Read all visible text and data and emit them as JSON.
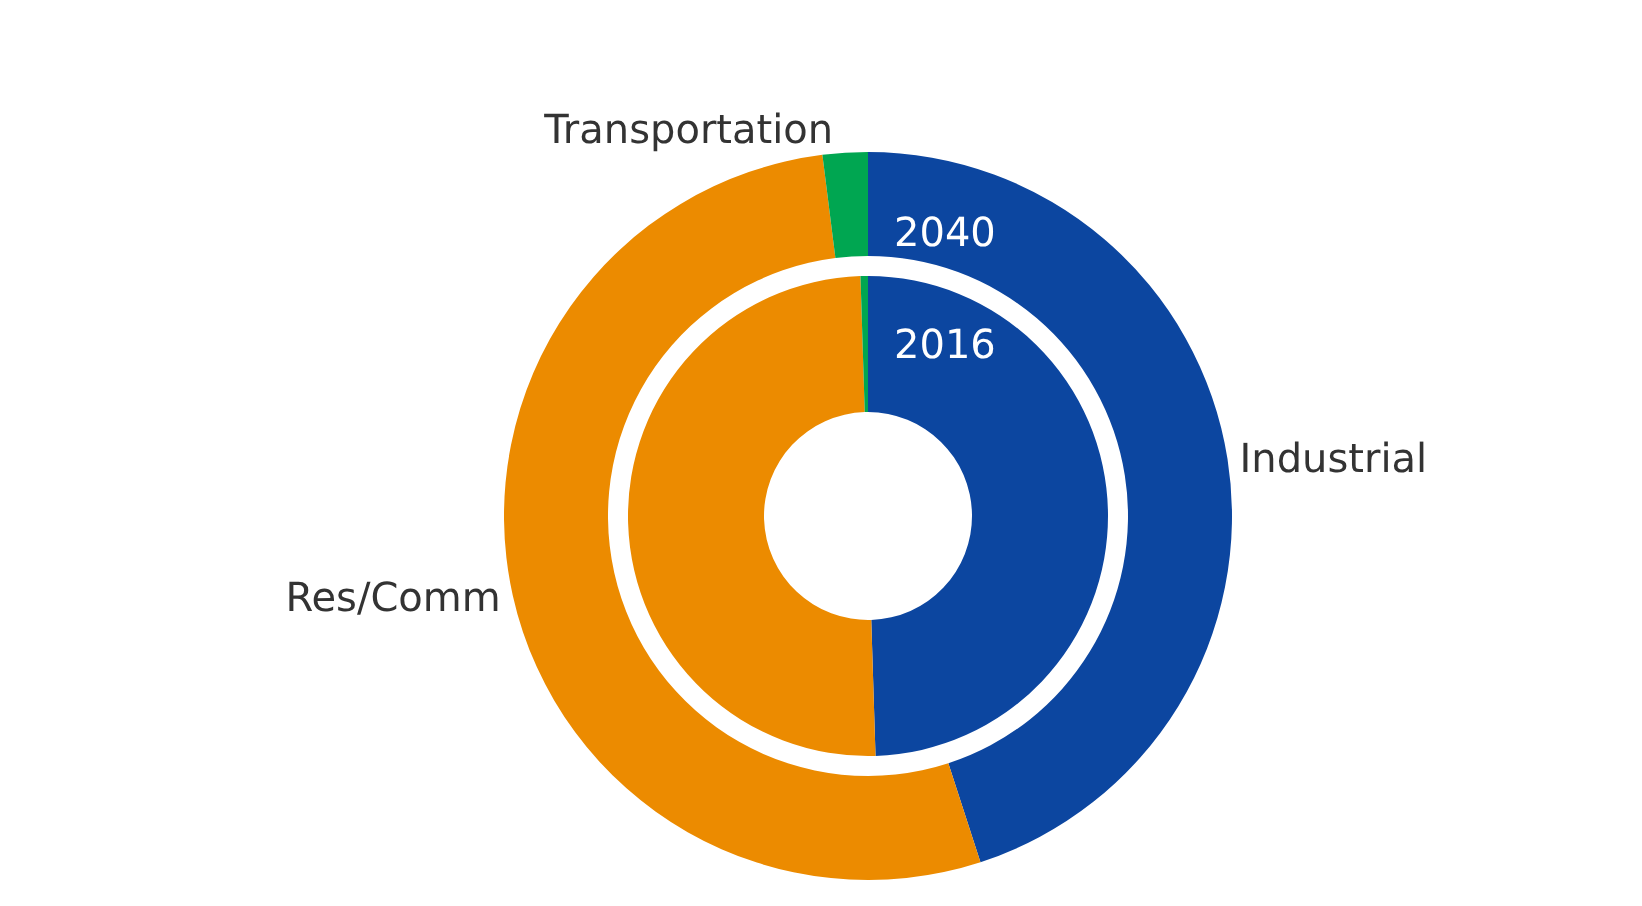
{
  "chart_data": {
    "type": "donut",
    "categories": [
      "Industrial",
      "Res/Comm",
      "Transportation"
    ],
    "colors": [
      "#0c46a0",
      "#ec8b00",
      "#00a651"
    ],
    "series": [
      {
        "name": "2040",
        "values": [
          45,
          53,
          2
        ]
      },
      {
        "name": "2016",
        "values": [
          49.5,
          50,
          0.5
        ]
      }
    ],
    "legend": false
  }
}
